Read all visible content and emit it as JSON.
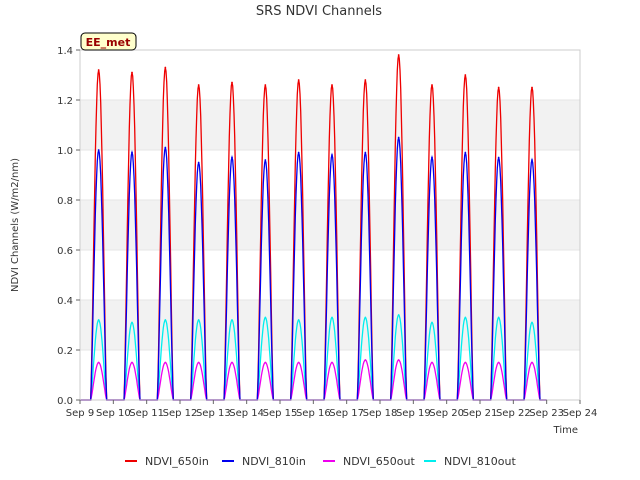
{
  "chart_data": {
    "type": "line",
    "title": "SRS NDVI Channels",
    "ylabel": "NDVI Channels (W/m2/nm)",
    "xlabel": "Time",
    "badge": "EE_met",
    "ylim": [
      0.0,
      1.4
    ],
    "yticks": [
      "0.0",
      "0.2",
      "0.4",
      "0.6",
      "0.8",
      "1.0",
      "1.2",
      "1.4"
    ],
    "xlim": [
      "Sep 9",
      "Sep 24"
    ],
    "xticks": [
      "Sep 9",
      "Sep 10",
      "Sep 11",
      "Sep 12",
      "Sep 13",
      "Sep 14",
      "Sep 15",
      "Sep 16",
      "Sep 17",
      "Sep 18",
      "Sep 19",
      "Sep 20",
      "Sep 21",
      "Sep 22",
      "Sep 23",
      "Sep 24"
    ],
    "grid": "horizontal bands",
    "legend_position": "bottom",
    "daily_peak_dates": [
      "Sep 9",
      "Sep 10",
      "Sep 11",
      "Sep 12",
      "Sep 13",
      "Sep 14",
      "Sep 15",
      "Sep 16",
      "Sep 17",
      "Sep 18",
      "Sep 19",
      "Sep 20",
      "Sep 21",
      "Sep 22"
    ],
    "series": [
      {
        "name": "NDVI_650in",
        "color": "#ee0000",
        "daily_peaks": [
          1.32,
          1.31,
          1.33,
          1.26,
          1.27,
          1.26,
          1.28,
          1.26,
          1.28,
          1.38,
          1.26,
          1.3,
          1.25,
          1.25
        ]
      },
      {
        "name": "NDVI_810in",
        "color": "#0000ee",
        "daily_peaks": [
          1.0,
          0.99,
          1.01,
          0.95,
          0.97,
          0.96,
          0.99,
          0.98,
          0.99,
          1.05,
          0.97,
          0.99,
          0.97,
          0.96
        ]
      },
      {
        "name": "NDVI_650out",
        "color": "#ee00ee",
        "daily_peaks": [
          0.15,
          0.15,
          0.15,
          0.15,
          0.15,
          0.15,
          0.15,
          0.15,
          0.16,
          0.16,
          0.15,
          0.15,
          0.15,
          0.15
        ]
      },
      {
        "name": "NDVI_810out",
        "color": "#00eeee",
        "daily_peaks": [
          0.32,
          0.31,
          0.32,
          0.32,
          0.32,
          0.33,
          0.32,
          0.33,
          0.33,
          0.34,
          0.31,
          0.33,
          0.33,
          0.31
        ]
      }
    ]
  }
}
